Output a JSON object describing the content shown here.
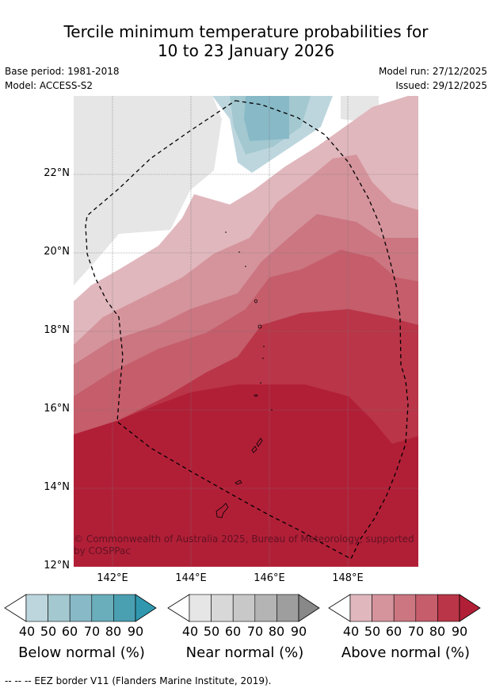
{
  "header": {
    "title_line1": "Tercile minimum temperature probabilities for",
    "title_line2": "10 to 23 January 2026",
    "base_period": "Base period: 1981-2018",
    "model": "Model: ACCESS-S2",
    "model_run": "Model run: 27/12/2025",
    "issued": "Issued: 29/12/2025"
  },
  "map": {
    "lat_labels": [
      "22°N",
      "20°N",
      "18°N",
      "16°N",
      "14°N",
      "12°N"
    ],
    "lon_labels": [
      "142°E",
      "144°E",
      "146°E",
      "148°E"
    ],
    "copyright": "© Commonwealth of Australia 2025, Bureau of Meteorology, supported by COSPPac"
  },
  "legend": {
    "below": {
      "title": "Below normal (%)",
      "colors": [
        "#bdd6de",
        "#a3c8d0",
        "#88b9c7",
        "#6aaebb",
        "#4a9fb1",
        "#2f98ae"
      ]
    },
    "near": {
      "title": "Near normal (%)",
      "colors": [
        "#e6e6e6",
        "#d8d8d8",
        "#c8c8c8",
        "#b4b4b4",
        "#9e9e9e",
        "#888888"
      ]
    },
    "above": {
      "title": "Above normal (%)",
      "colors": [
        "#e0b7bd",
        "#d5949c",
        "#cb7681",
        "#c55d6b",
        "#b93547",
        "#b11f37"
      ]
    },
    "ticks": [
      "40",
      "50",
      "60",
      "70",
      "80",
      "90"
    ]
  },
  "footer": "-- -- -- EEZ border V11 (Flanders Marine Institute, 2019)."
}
